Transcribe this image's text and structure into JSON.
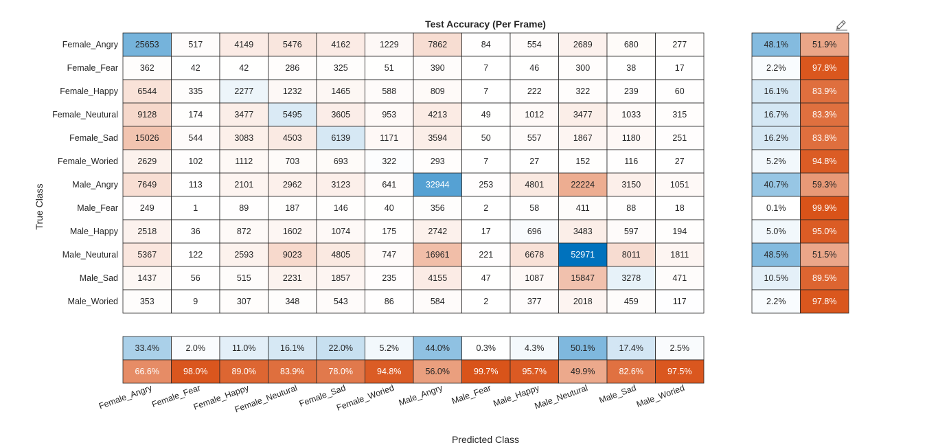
{
  "chart_data": {
    "type": "heatmap",
    "title": "Test Accuracy (Per Frame)",
    "xlabel": "Predicted Class",
    "ylabel": "True Class",
    "classes": [
      "Female_Angry",
      "Female_Fear",
      "Female_Happy",
      "Female_Neutural",
      "Female_Sad",
      "Female_Woried",
      "Male_Angry",
      "Male_Fear",
      "Male_Happy",
      "Male_Neutural",
      "Male_Sad",
      "Male_Woried"
    ],
    "matrix": [
      [
        25653,
        517,
        4149,
        5476,
        4162,
        1229,
        7862,
        84,
        554,
        2689,
        680,
        277
      ],
      [
        362,
        42,
        42,
        286,
        325,
        51,
        390,
        7,
        46,
        300,
        38,
        17
      ],
      [
        6544,
        335,
        2277,
        1232,
        1465,
        588,
        809,
        7,
        222,
        322,
        239,
        60
      ],
      [
        9128,
        174,
        3477,
        5495,
        3605,
        953,
        4213,
        49,
        1012,
        3477,
        1033,
        315
      ],
      [
        15026,
        544,
        3083,
        4503,
        6139,
        1171,
        3594,
        50,
        557,
        1867,
        1180,
        251
      ],
      [
        2629,
        102,
        1112,
        703,
        693,
        322,
        293,
        7,
        27,
        152,
        116,
        27
      ],
      [
        7649,
        113,
        2101,
        2962,
        3123,
        641,
        32944,
        253,
        4801,
        22224,
        3150,
        1051
      ],
      [
        249,
        1,
        89,
        187,
        146,
        40,
        356,
        2,
        58,
        411,
        88,
        18
      ],
      [
        2518,
        36,
        872,
        1602,
        1074,
        175,
        2742,
        17,
        696,
        3483,
        597,
        194
      ],
      [
        5367,
        122,
        2593,
        9023,
        4805,
        747,
        16961,
        221,
        6678,
        52971,
        8011,
        1811
      ],
      [
        1437,
        56,
        515,
        2231,
        1857,
        235,
        4155,
        47,
        1087,
        15847,
        3278,
        471
      ],
      [
        353,
        9,
        307,
        348,
        543,
        86,
        584,
        2,
        377,
        2018,
        459,
        117
      ]
    ],
    "row_summary": {
      "correct": [
        "48.1%",
        "2.2%",
        "16.1%",
        "16.7%",
        "16.2%",
        "5.2%",
        "40.7%",
        "0.1%",
        "5.0%",
        "48.5%",
        "10.5%",
        "2.2%"
      ],
      "incorrect": [
        "51.9%",
        "97.8%",
        "83.9%",
        "83.3%",
        "83.8%",
        "94.8%",
        "59.3%",
        "99.9%",
        "95.0%",
        "51.5%",
        "89.5%",
        "97.8%"
      ]
    },
    "column_summary": {
      "correct": [
        "33.4%",
        "2.0%",
        "11.0%",
        "16.1%",
        "22.0%",
        "5.2%",
        "44.0%",
        "0.3%",
        "4.3%",
        "50.1%",
        "17.4%",
        "2.5%"
      ],
      "incorrect": [
        "66.6%",
        "98.0%",
        "89.0%",
        "83.9%",
        "78.0%",
        "94.8%",
        "56.0%",
        "99.7%",
        "95.7%",
        "49.9%",
        "82.6%",
        "97.5%"
      ]
    },
    "colors": {
      "correct_strong": "#0072bd",
      "incorrect_strong": "#d95319",
      "background": "#ffffff",
      "grid": "#262626",
      "text_dark": "#262626",
      "text_light": "#ffffff"
    }
  },
  "toolbar": {
    "icon": "brush-icon"
  }
}
